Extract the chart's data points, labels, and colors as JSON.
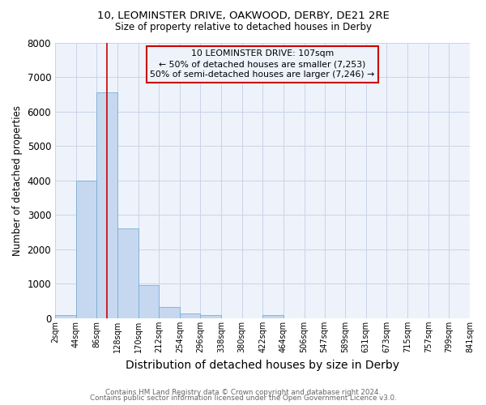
{
  "title1": "10, LEOMINSTER DRIVE, OAKWOOD, DERBY, DE21 2RE",
  "title2": "Size of property relative to detached houses in Derby",
  "xlabel": "Distribution of detached houses by size in Derby",
  "ylabel": "Number of detached properties",
  "footer1": "Contains HM Land Registry data © Crown copyright and database right 2024.",
  "footer2": "Contains public sector information licensed under the Open Government Licence v3.0.",
  "bar_edges": [
    2,
    44,
    86,
    128,
    170,
    212,
    254,
    296,
    338,
    380,
    422,
    464,
    506,
    547,
    589,
    631,
    673,
    715,
    757,
    799,
    841
  ],
  "bar_heights": [
    80,
    4000,
    6550,
    2600,
    950,
    320,
    130,
    100,
    0,
    0,
    100,
    0,
    0,
    0,
    0,
    0,
    0,
    0,
    0,
    0
  ],
  "bar_color": "#c5d8f0",
  "bar_edgecolor": "#7aadd4",
  "grid_color": "#c8d4e8",
  "background_color": "#ffffff",
  "plot_bg_color": "#eef3fb",
  "red_line_x": 107,
  "red_line_color": "#cc0000",
  "annotation_line1": "10 LEOMINSTER DRIVE: 107sqm",
  "annotation_line2": "← 50% of detached houses are smaller (7,253)",
  "annotation_line3": "50% of semi-detached houses are larger (7,246) →",
  "annotation_box_color": "#cc0000",
  "ylim": [
    0,
    8000
  ],
  "yticks": [
    0,
    1000,
    2000,
    3000,
    4000,
    5000,
    6000,
    7000,
    8000
  ],
  "tick_labels": [
    "2sqm",
    "44sqm",
    "86sqm",
    "128sqm",
    "170sqm",
    "212sqm",
    "254sqm",
    "296sqm",
    "338sqm",
    "380sqm",
    "422sqm",
    "464sqm",
    "506sqm",
    "547sqm",
    "589sqm",
    "631sqm",
    "673sqm",
    "715sqm",
    "757sqm",
    "799sqm",
    "841sqm"
  ]
}
